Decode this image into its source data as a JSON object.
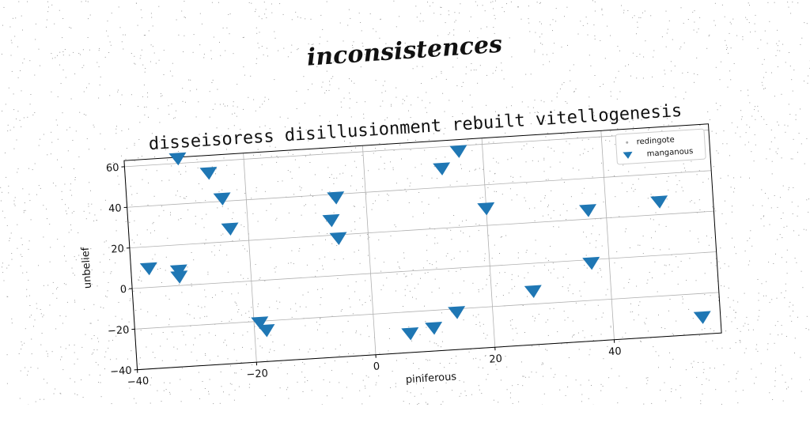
{
  "suptitle": "inconsistences",
  "chart_data": {
    "type": "scatter",
    "title": "disseisoress disillusionment rebuilt vitellogenesis",
    "xlabel": "piniferous",
    "ylabel": "unbelief",
    "xlim": [
      -40,
      58
    ],
    "ylim": [
      -40,
      63
    ],
    "xticks": [
      -40,
      -20,
      0,
      20,
      40
    ],
    "yticks": [
      -40,
      -20,
      0,
      20,
      40,
      60
    ],
    "grid": true,
    "legend_position": "top-right",
    "series": [
      {
        "name": "redingote",
        "marker": "dot",
        "color": "#aaaaaa",
        "points": []
      },
      {
        "name": "manganous",
        "marker": "triangle-down",
        "color": "#1f77b4",
        "points": [
          {
            "x": -37,
            "y": 10
          },
          {
            "x": -32,
            "y": 8
          },
          {
            "x": -32,
            "y": 5
          },
          {
            "x": -31,
            "y": 63
          },
          {
            "x": -26,
            "y": 55
          },
          {
            "x": -24,
            "y": 42
          },
          {
            "x": -23,
            "y": 27
          },
          {
            "x": -19,
            "y": -20
          },
          {
            "x": -18,
            "y": -24
          },
          {
            "x": -6,
            "y": 28
          },
          {
            "x": -5,
            "y": 39
          },
          {
            "x": -5,
            "y": 19
          },
          {
            "x": 6,
            "y": -30
          },
          {
            "x": 10,
            "y": -28
          },
          {
            "x": 13,
            "y": 50
          },
          {
            "x": 14,
            "y": -21
          },
          {
            "x": 16,
            "y": 58
          },
          {
            "x": 20,
            "y": 29
          },
          {
            "x": 27,
            "y": -13
          },
          {
            "x": 37,
            "y": 25
          },
          {
            "x": 37,
            "y": -1
          },
          {
            "x": 49,
            "y": 27
          },
          {
            "x": 55,
            "y": -31
          }
        ]
      }
    ]
  }
}
